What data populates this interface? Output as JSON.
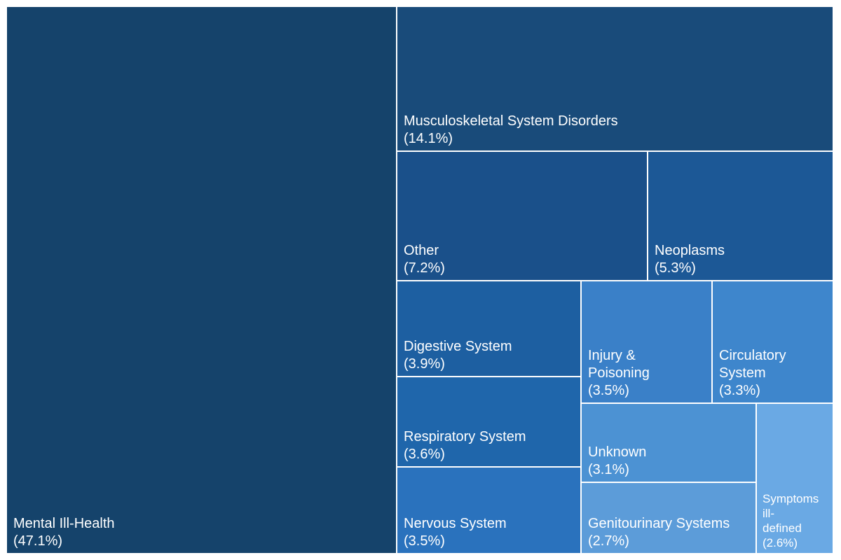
{
  "chart_data": {
    "type": "treemap",
    "title": "",
    "items": [
      {
        "label": "Mental Ill-Health",
        "value": 47.1,
        "display": "(47.1%)",
        "color": "#15436b"
      },
      {
        "label": "Musculoskeletal System Disorders",
        "value": 14.1,
        "display": "(14.1%)",
        "color": "#194b7a"
      },
      {
        "label": "Other",
        "value": 7.2,
        "display": "(7.2%)",
        "color": "#1a508a"
      },
      {
        "label": "Neoplasms",
        "value": 5.3,
        "display": "(5.3%)",
        "color": "#1c5896"
      },
      {
        "label": "Digestive System",
        "value": 3.9,
        "display": "(3.9%)",
        "color": "#1d5fa1"
      },
      {
        "label": "Respiratory System",
        "value": 3.6,
        "display": "(3.6%)",
        "color": "#1f66ab"
      },
      {
        "label": "Nervous System",
        "value": 3.5,
        "display": "(3.5%)",
        "color": "#2a72bd"
      },
      {
        "label": "Injury & Poisoning",
        "value": 3.5,
        "display": "(3.5%)",
        "color": "#3a80c8"
      },
      {
        "label": "Circulatory System",
        "value": 3.3,
        "display": "(3.3%)",
        "color": "#3e86cc"
      },
      {
        "label": "Unknown",
        "value": 3.1,
        "display": "(3.1%)",
        "color": "#4c92d3"
      },
      {
        "label": "Genitourinary Systems",
        "value": 2.7,
        "display": "(2.7%)",
        "color": "#5c9cd9"
      },
      {
        "label": "Symptoms ill-defined",
        "value": 2.6,
        "display": "(2.6%)",
        "color": "#6aa9e4"
      }
    ]
  }
}
